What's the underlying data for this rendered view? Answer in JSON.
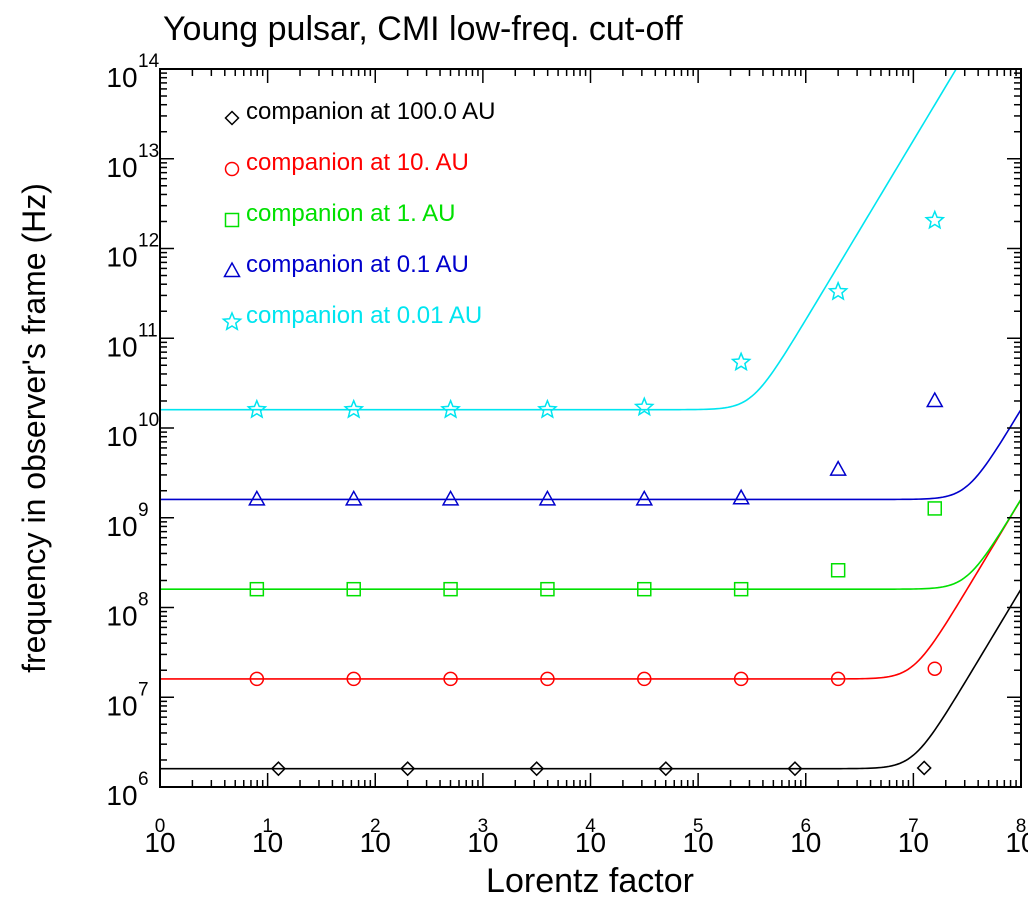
{
  "chart_data": {
    "type": "line",
    "title": "Young pulsar, CMI low-freq. cut-off",
    "xlabel": "Lorentz factor",
    "ylabel": "frequency in observer's frame (Hz)",
    "xscale": "log",
    "yscale": "log",
    "xlim": [
      1,
      100000000
    ],
    "ylim": [
      1000000,
      100000000000000
    ],
    "x_ticks": [
      {
        "base": "10",
        "exp": "0",
        "value": 1
      },
      {
        "base": "10",
        "exp": "1",
        "value": 10
      },
      {
        "base": "10",
        "exp": "2",
        "value": 100
      },
      {
        "base": "10",
        "exp": "3",
        "value": 1000
      },
      {
        "base": "10",
        "exp": "4",
        "value": 10000
      },
      {
        "base": "10",
        "exp": "5",
        "value": 100000
      },
      {
        "base": "10",
        "exp": "6",
        "value": 1000000
      },
      {
        "base": "10",
        "exp": "7",
        "value": 10000000
      },
      {
        "base": "10",
        "exp": "8",
        "value": 100000000
      }
    ],
    "y_ticks": [
      {
        "base": "10",
        "exp": "6",
        "value": 1000000
      },
      {
        "base": "10",
        "exp": "7",
        "value": 10000000
      },
      {
        "base": "10",
        "exp": "8",
        "value": 100000000
      },
      {
        "base": "10",
        "exp": "9",
        "value": 1000000000
      },
      {
        "base": "10",
        "exp": "10",
        "value": 10000000000
      },
      {
        "base": "10",
        "exp": "11",
        "value": 100000000000
      },
      {
        "base": "10",
        "exp": "12",
        "value": 1000000000000
      },
      {
        "base": "10",
        "exp": "13",
        "value": 10000000000000
      },
      {
        "base": "10",
        "exp": "14",
        "value": 100000000000000
      }
    ],
    "legend_position": "top-left",
    "grid": false,
    "series": [
      {
        "name": "companion at 100.0 AU",
        "color": "#000000",
        "marker": "diamond",
        "plateau": 1600000,
        "knee": 100000000000000,
        "points_x": [
          12.6,
          200,
          3160,
          50100,
          794000,
          12600000
        ],
        "points_y": [
          1600000,
          1600000,
          1600000,
          1600000,
          1600000,
          1630000
        ]
      },
      {
        "name": "companion at 10. AU",
        "color": "#ff0000",
        "marker": "circle",
        "plateau": 16000000,
        "knee": 100000000000000,
        "points_x": [
          7.94,
          63.1,
          501,
          3980,
          31600,
          251000,
          2000000,
          15800000
        ],
        "points_y": [
          16000000,
          16000000,
          16000000,
          16000000,
          16000000,
          16000000,
          16000000,
          20800000
        ]
      },
      {
        "name": "companion at 1. AU",
        "color": "#00e000",
        "marker": "square",
        "plateau": 160000000,
        "knee": 1000000000000000,
        "points_x": [
          7.94,
          63.1,
          501,
          3980,
          31600,
          251000,
          2000000,
          15800000
        ],
        "points_y": [
          160000000,
          160000000,
          160000000,
          160000000,
          160000000,
          160000000,
          260000000,
          1270000000
        ]
      },
      {
        "name": "companion at 0.1 AU",
        "color": "#0000cc",
        "marker": "triangle",
        "plateau": 1600000000,
        "knee": 1000000000000000,
        "points_x": [
          7.94,
          63.1,
          501,
          3980,
          31600,
          251000,
          2000000,
          15800000
        ],
        "points_y": [
          1600000000,
          1600000000,
          1600000000,
          1600000000,
          1600000000,
          1650000000,
          3440000000,
          20000000000
        ]
      },
      {
        "name": "companion at 0.01 AU",
        "color": "#00e5f0",
        "marker": "star",
        "plateau": 16000000000,
        "knee": 100000000000,
        "points_x": [
          7.94,
          63.1,
          501,
          3980,
          31600,
          251000,
          2000000,
          15800000
        ],
        "points_y": [
          16000000000,
          16000000000,
          16000000000,
          16000000000,
          17000000000,
          54000000000,
          330000000000,
          2050000000000
        ]
      }
    ]
  }
}
